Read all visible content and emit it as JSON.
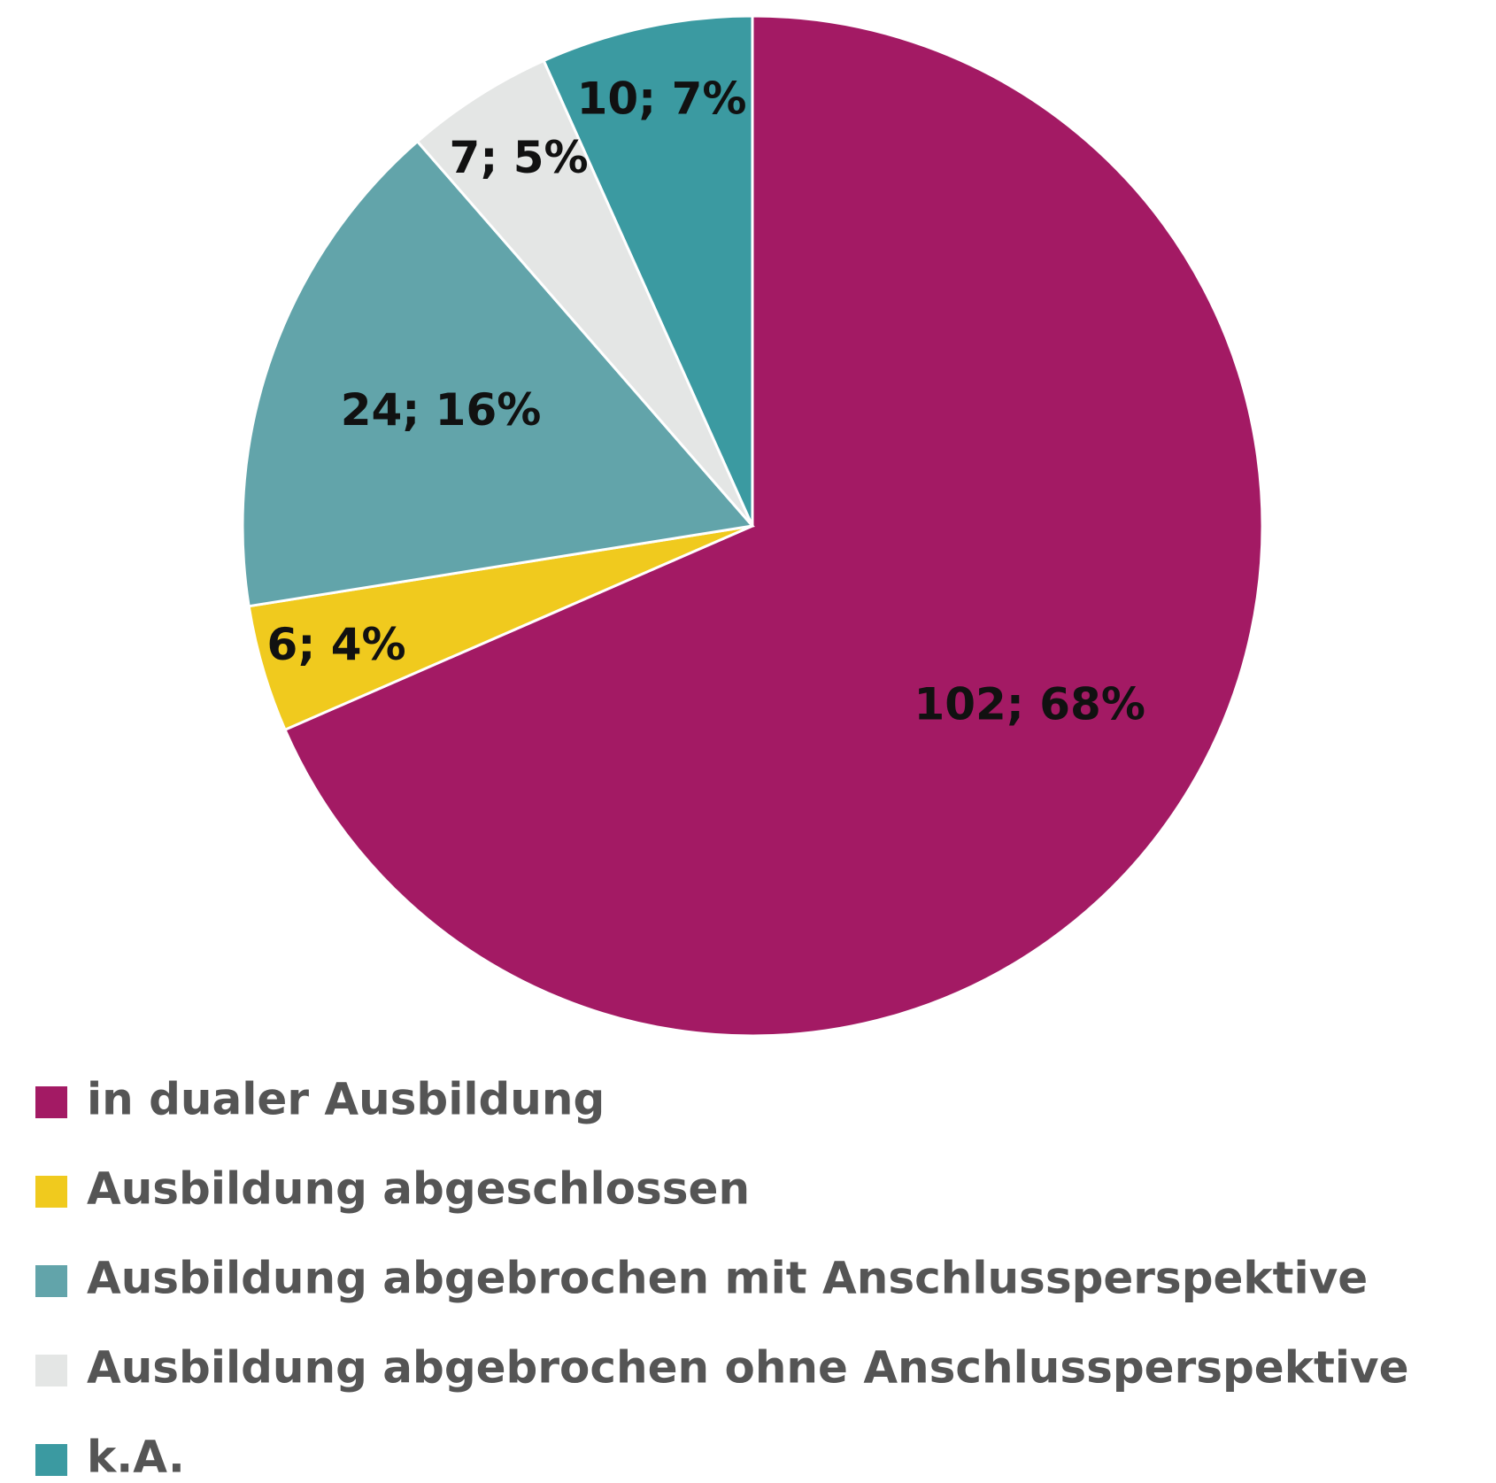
{
  "chart_data": {
    "type": "pie",
    "categories": [
      "in dualer Ausbildung",
      "Ausbildung abgeschlossen",
      "Ausbildung abgebrochen mit Anschlussperspektive",
      "Ausbildung abgebrochen ohne Anschlussperspektive",
      "k.A."
    ],
    "values": [
      102,
      6,
      24,
      7,
      10
    ],
    "value_labels": [
      "102; 68%",
      "6; 4%",
      "24; 16%",
      "7; 5%",
      "10; 7%"
    ],
    "colors": [
      "#a31a64",
      "#f0ca1e",
      "#62a4aa",
      "#e4e6e5",
      "#3b9aa1"
    ],
    "legend": "bottom"
  }
}
